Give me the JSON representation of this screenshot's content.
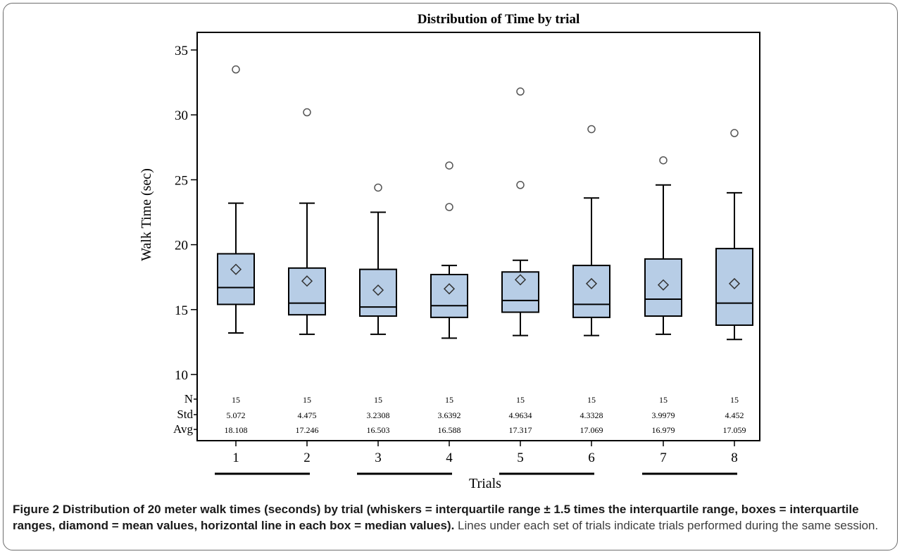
{
  "chart_data": {
    "type": "box",
    "title": "Distribution of Time by trial",
    "xlabel": "Trials",
    "ylabel": "Walk Time (sec)",
    "ylim": [
      10,
      35
    ],
    "yticks": [
      10,
      15,
      20,
      25,
      30,
      35
    ],
    "grid": false,
    "box_fill": "#b7cde6",
    "categories": [
      "1",
      "2",
      "3",
      "4",
      "5",
      "6",
      "7",
      "8"
    ],
    "boxes": [
      {
        "label": "1",
        "whisker_low": 13.2,
        "q1": 15.4,
        "median": 16.7,
        "q3": 19.3,
        "whisker_high": 23.2,
        "mean": 18.1,
        "outliers": [
          33.5
        ]
      },
      {
        "label": "2",
        "whisker_low": 13.1,
        "q1": 14.6,
        "median": 15.5,
        "q3": 18.2,
        "whisker_high": 23.2,
        "mean": 17.2,
        "outliers": [
          30.2
        ]
      },
      {
        "label": "3",
        "whisker_low": 13.1,
        "q1": 14.5,
        "median": 15.2,
        "q3": 18.1,
        "whisker_high": 22.5,
        "mean": 16.5,
        "outliers": [
          24.4
        ]
      },
      {
        "label": "4",
        "whisker_low": 12.8,
        "q1": 14.4,
        "median": 15.3,
        "q3": 17.7,
        "whisker_high": 18.4,
        "mean": 16.6,
        "outliers": [
          22.9,
          26.1
        ]
      },
      {
        "label": "5",
        "whisker_low": 13.0,
        "q1": 14.8,
        "median": 15.7,
        "q3": 17.9,
        "whisker_high": 18.8,
        "mean": 17.3,
        "outliers": [
          24.6,
          31.8
        ]
      },
      {
        "label": "6",
        "whisker_low": 13.0,
        "q1": 14.4,
        "median": 15.4,
        "q3": 18.4,
        "whisker_high": 23.6,
        "mean": 17.0,
        "outliers": [
          28.9
        ]
      },
      {
        "label": "7",
        "whisker_low": 13.1,
        "q1": 14.5,
        "median": 15.8,
        "q3": 18.9,
        "whisker_high": 24.6,
        "mean": 16.9,
        "outliers": [
          26.5
        ]
      },
      {
        "label": "8",
        "whisker_low": 12.7,
        "q1": 13.8,
        "median": 15.5,
        "q3": 19.7,
        "whisker_high": 24.0,
        "mean": 17.0,
        "outliers": [
          28.6
        ]
      }
    ],
    "stats_table": {
      "row_labels": [
        "N",
        "Std",
        "Avg"
      ],
      "N": [
        "15",
        "15",
        "15",
        "15",
        "15",
        "15",
        "15",
        "15"
      ],
      "Std": [
        "5.072",
        "4.475",
        "3.2308",
        "3.6392",
        "4.9634",
        "4.3328",
        "3.9979",
        "4.452"
      ],
      "Avg": [
        "18.108",
        "17.246",
        "16.503",
        "16.588",
        "17.317",
        "17.069",
        "16.979",
        "17.059"
      ]
    },
    "sessions": [
      [
        1,
        2
      ],
      [
        3,
        4
      ],
      [
        5,
        6
      ],
      [
        7,
        8
      ]
    ]
  },
  "caption": {
    "bold": "Figure 2 Distribution of 20 meter walk times (seconds) by trial (whiskers = interquartile range ± 1.5 times the interquartile range, boxes = interquartile ranges, diamond = mean values, horizontal line in each box = median values).",
    "normal": " Lines under each set of trials indicate trials performed during the same session."
  }
}
